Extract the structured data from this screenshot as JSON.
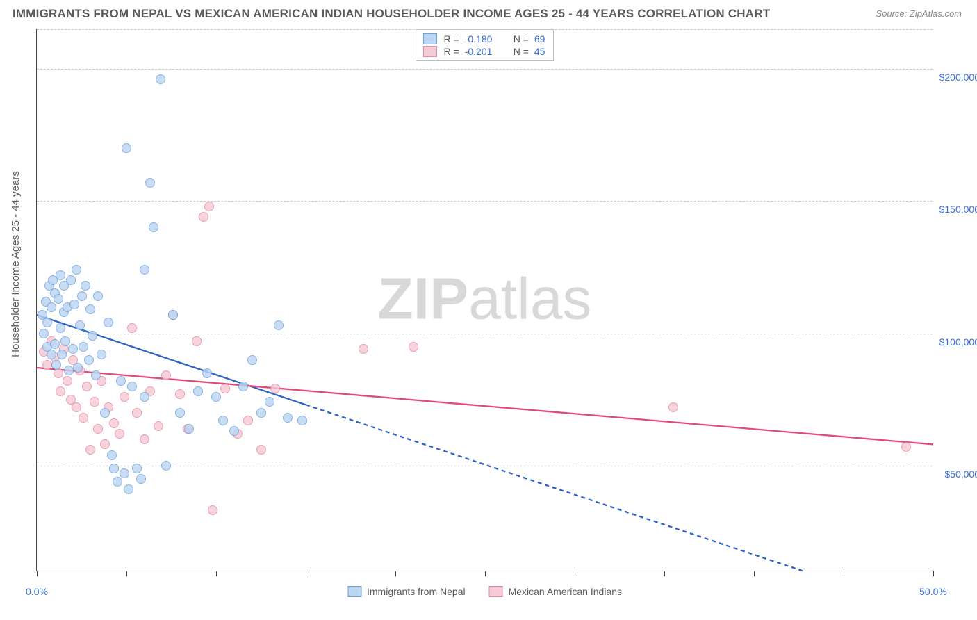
{
  "title": "IMMIGRANTS FROM NEPAL VS MEXICAN AMERICAN INDIAN HOUSEHOLDER INCOME AGES 25 - 44 YEARS CORRELATION CHART",
  "source": "Source: ZipAtlas.com",
  "ylabel": "Householder Income Ages 25 - 44 years",
  "watermark": {
    "bold": "ZIP",
    "rest": "atlas"
  },
  "chart": {
    "type": "scatter",
    "xlim": [
      0,
      50
    ],
    "ylim": [
      10000,
      215000
    ],
    "x_ticks": [
      0,
      5,
      10,
      15,
      20,
      25,
      30,
      35,
      40,
      45,
      50
    ],
    "x_tick_labels": {
      "0": "0.0%",
      "50": "50.0%"
    },
    "y_grid": [
      50000,
      100000,
      150000,
      200000,
      215000
    ],
    "y_tick_labels": {
      "50000": "$50,000",
      "100000": "$100,000",
      "150000": "$150,000",
      "200000": "$200,000"
    },
    "grid_color": "#c9c9c9",
    "background_color": "#ffffff",
    "point_radius": 7,
    "point_stroke_width": 1.3,
    "line_width": 2.3
  },
  "series": {
    "a": {
      "label": "Immigrants from Nepal",
      "fill": "#bcd6f2",
      "stroke": "#6fa3df",
      "line_color": "#2b63c9",
      "R": "-0.180",
      "N": "69",
      "trend": {
        "x1": 0,
        "y1": 107000,
        "x2": 15,
        "y2": 73000,
        "ext_x2": 50,
        "ext_y2": -6333
      },
      "points": [
        [
          0.3,
          107000
        ],
        [
          0.4,
          100000
        ],
        [
          0.5,
          112000
        ],
        [
          0.6,
          95000
        ],
        [
          0.6,
          104000
        ],
        [
          0.7,
          118000
        ],
        [
          0.8,
          92000
        ],
        [
          0.8,
          110000
        ],
        [
          0.9,
          120000
        ],
        [
          1.0,
          96000
        ],
        [
          1.0,
          115000
        ],
        [
          1.1,
          88000
        ],
        [
          1.2,
          113000
        ],
        [
          1.3,
          102000
        ],
        [
          1.3,
          122000
        ],
        [
          1.4,
          92000
        ],
        [
          1.5,
          118000
        ],
        [
          1.5,
          108000
        ],
        [
          1.6,
          97000
        ],
        [
          1.7,
          110000
        ],
        [
          1.8,
          86000
        ],
        [
          1.9,
          120000
        ],
        [
          2.0,
          94000
        ],
        [
          2.1,
          111000
        ],
        [
          2.2,
          124000
        ],
        [
          2.3,
          87000
        ],
        [
          2.4,
          103000
        ],
        [
          2.5,
          114000
        ],
        [
          2.6,
          95000
        ],
        [
          2.7,
          118000
        ],
        [
          2.9,
          90000
        ],
        [
          3.0,
          109000
        ],
        [
          3.1,
          99000
        ],
        [
          3.3,
          84000
        ],
        [
          3.4,
          114000
        ],
        [
          3.6,
          92000
        ],
        [
          3.8,
          70000
        ],
        [
          4.0,
          104000
        ],
        [
          4.2,
          54000
        ],
        [
          4.3,
          49000
        ],
        [
          4.5,
          44000
        ],
        [
          4.7,
          82000
        ],
        [
          4.9,
          47000
        ],
        [
          5.1,
          41000
        ],
        [
          5.3,
          80000
        ],
        [
          5.0,
          170000
        ],
        [
          5.6,
          49000
        ],
        [
          5.8,
          45000
        ],
        [
          6.0,
          76000
        ],
        [
          6.0,
          124000
        ],
        [
          6.3,
          157000
        ],
        [
          6.5,
          140000
        ],
        [
          6.9,
          196000
        ],
        [
          7.2,
          50000
        ],
        [
          7.6,
          107000
        ],
        [
          8.0,
          70000
        ],
        [
          8.5,
          64000
        ],
        [
          9.0,
          78000
        ],
        [
          9.5,
          85000
        ],
        [
          10.0,
          76000
        ],
        [
          10.4,
          67000
        ],
        [
          11.0,
          63000
        ],
        [
          11.5,
          80000
        ],
        [
          12.0,
          90000
        ],
        [
          12.5,
          70000
        ],
        [
          13.0,
          74000
        ],
        [
          13.5,
          103000
        ],
        [
          14.0,
          68000
        ],
        [
          14.8,
          67000
        ]
      ]
    },
    "b": {
      "label": "Mexican American Indians",
      "fill": "#f6cbd5",
      "stroke": "#e68aa2",
      "line_color": "#e04b77",
      "R": "-0.201",
      "N": "45",
      "trend": {
        "x1": 0,
        "y1": 87000,
        "x2": 50,
        "y2": 58000
      },
      "points": [
        [
          0.4,
          93000
        ],
        [
          0.6,
          88000
        ],
        [
          0.8,
          97000
        ],
        [
          1.0,
          91000
        ],
        [
          1.2,
          85000
        ],
        [
          1.3,
          78000
        ],
        [
          1.5,
          94000
        ],
        [
          1.7,
          82000
        ],
        [
          1.9,
          75000
        ],
        [
          2.0,
          90000
        ],
        [
          2.2,
          72000
        ],
        [
          2.4,
          86000
        ],
        [
          2.6,
          68000
        ],
        [
          2.8,
          80000
        ],
        [
          3.0,
          56000
        ],
        [
          3.2,
          74000
        ],
        [
          3.4,
          64000
        ],
        [
          3.6,
          82000
        ],
        [
          3.8,
          58000
        ],
        [
          4.0,
          72000
        ],
        [
          4.3,
          66000
        ],
        [
          4.6,
          62000
        ],
        [
          4.9,
          76000
        ],
        [
          5.3,
          102000
        ],
        [
          5.6,
          70000
        ],
        [
          6.0,
          60000
        ],
        [
          6.3,
          78000
        ],
        [
          6.8,
          65000
        ],
        [
          7.2,
          84000
        ],
        [
          7.6,
          107000
        ],
        [
          8.0,
          77000
        ],
        [
          8.4,
          64000
        ],
        [
          8.9,
          97000
        ],
        [
          9.3,
          144000
        ],
        [
          9.6,
          148000
        ],
        [
          9.8,
          33000
        ],
        [
          10.5,
          79000
        ],
        [
          11.2,
          62000
        ],
        [
          11.8,
          67000
        ],
        [
          12.5,
          56000
        ],
        [
          13.3,
          79000
        ],
        [
          18.2,
          94000
        ],
        [
          35.5,
          72000
        ],
        [
          48.5,
          57000
        ],
        [
          21.0,
          95000
        ]
      ]
    }
  },
  "legend_bottom": [
    {
      "series": "a"
    },
    {
      "series": "b"
    }
  ]
}
